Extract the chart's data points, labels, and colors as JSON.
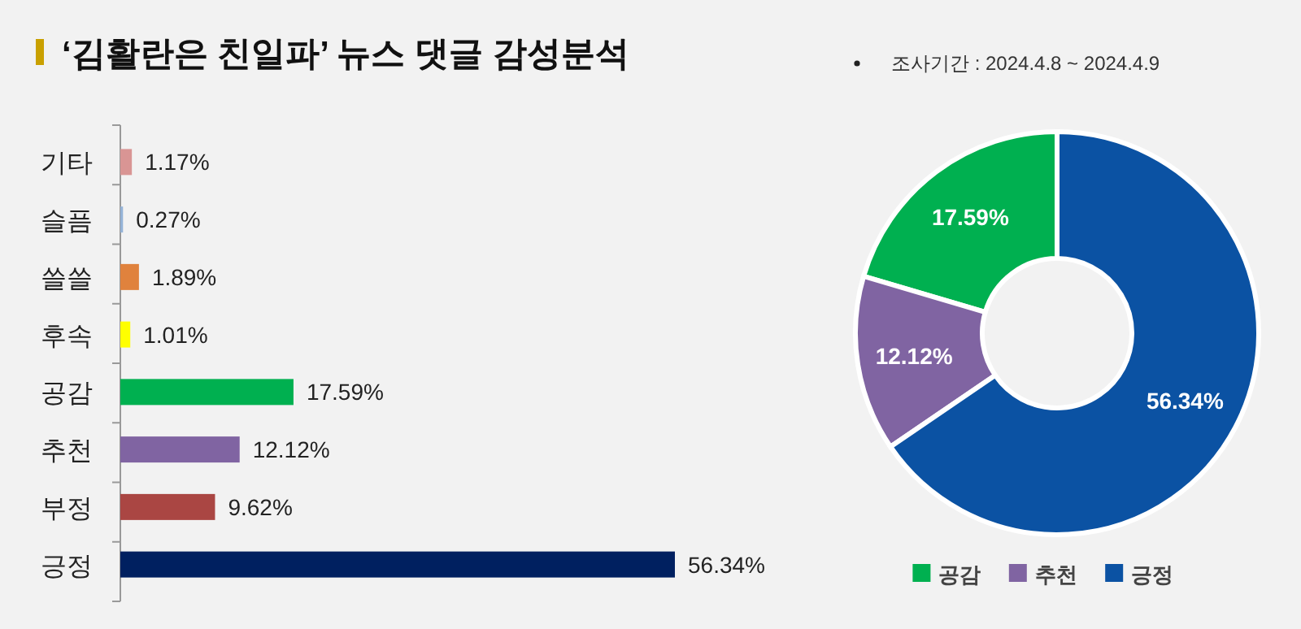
{
  "chart_data": [
    {
      "type": "bar",
      "orientation": "horizontal",
      "title": "‘김활란은 친일파’ 뉴스 댓글 감성분석",
      "annotations": [
        "조사기간 : 2024.4.8 ~ 2024.4.9"
      ],
      "categories": [
        "기타",
        "슬픔",
        "쓸쓸",
        "후속",
        "공감",
        "추천",
        "부정",
        "긍정"
      ],
      "values": [
        1.17,
        0.27,
        1.89,
        1.01,
        17.59,
        12.12,
        9.62,
        56.34
      ],
      "colors": [
        "#d99594",
        "#95b3d7",
        "#e0823d",
        "#ffff00",
        "#00b050",
        "#8064a2",
        "#aa4643",
        "#002060"
      ],
      "value_labels": [
        "1.17%",
        "0.27%",
        "1.89%",
        "1.01%",
        "17.59%",
        "12.12%",
        "9.62%",
        "56.34%"
      ]
    },
    {
      "type": "donut",
      "categories": [
        "공감",
        "추천",
        "긍정"
      ],
      "values": [
        17.59,
        12.12,
        56.34
      ],
      "colors": [
        "#00b050",
        "#8064a2",
        "#0b52a3"
      ],
      "value_labels": [
        "17.59%",
        "12.12%",
        "56.34%"
      ],
      "legend": "bottom"
    }
  ]
}
